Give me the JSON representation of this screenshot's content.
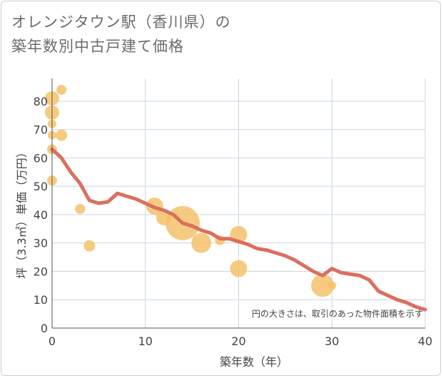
{
  "title_line1": "オレンジタウン駅（香川県）の",
  "title_line2": "築年数別中古戸建て価格",
  "chart_data": {
    "type": "line+scatter",
    "xlabel": "築年数（年）",
    "ylabel": "坪（3.3㎡）単価（万円）",
    "note": "円の大きさは、取引のあった物件面積を示す",
    "xlim": [
      0,
      40
    ],
    "ylim": [
      0,
      88
    ],
    "xticks": [
      "0",
      "10",
      "20",
      "30",
      "40"
    ],
    "yticks": [
      "0",
      "10",
      "20",
      "30",
      "40",
      "50",
      "60",
      "70",
      "80"
    ],
    "grid": true,
    "colors": {
      "line": "#d9705f",
      "bubble": "#f5c26b",
      "grid": "#c9d6e3",
      "text": "#444444"
    },
    "line": {
      "x": [
        0,
        1,
        2,
        3,
        4,
        5,
        6,
        7,
        8,
        9,
        10,
        11,
        12,
        13,
        14,
        15,
        16,
        17,
        18,
        19,
        20,
        21,
        22,
        23,
        24,
        25,
        26,
        27,
        28,
        29,
        30,
        31,
        32,
        33,
        34,
        35,
        36,
        37,
        38,
        39,
        40
      ],
      "y": [
        63,
        60,
        55,
        51,
        45,
        44,
        44.5,
        47.5,
        46.5,
        45.5,
        44,
        42.5,
        41.5,
        40,
        37,
        36,
        34.5,
        33.5,
        31.5,
        31.5,
        30.5,
        29.5,
        28,
        27.5,
        26.5,
        25.5,
        24,
        22,
        20,
        18.5,
        21,
        19.5,
        19,
        18.5,
        17,
        13,
        11.5,
        10,
        9,
        7.5,
        6.5
      ]
    },
    "bubbles": [
      {
        "x": 0,
        "y": 81,
        "size": 10
      },
      {
        "x": 0,
        "y": 76,
        "size": 10
      },
      {
        "x": 0,
        "y": 72,
        "size": 6
      },
      {
        "x": 0,
        "y": 68,
        "size": 6
      },
      {
        "x": 0,
        "y": 63,
        "size": 7
      },
      {
        "x": 0,
        "y": 52,
        "size": 7
      },
      {
        "x": 1,
        "y": 84,
        "size": 7
      },
      {
        "x": 1,
        "y": 68,
        "size": 8
      },
      {
        "x": 3,
        "y": 42,
        "size": 7
      },
      {
        "x": 4,
        "y": 29,
        "size": 8
      },
      {
        "x": 11,
        "y": 43,
        "size": 12
      },
      {
        "x": 12,
        "y": 39,
        "size": 11
      },
      {
        "x": 14,
        "y": 37,
        "size": 24
      },
      {
        "x": 16,
        "y": 30,
        "size": 14
      },
      {
        "x": 18,
        "y": 31,
        "size": 7
      },
      {
        "x": 20,
        "y": 33,
        "size": 12
      },
      {
        "x": 20,
        "y": 21,
        "size": 12
      },
      {
        "x": 29,
        "y": 15,
        "size": 16
      },
      {
        "x": 30,
        "y": 15,
        "size": 6
      }
    ]
  }
}
